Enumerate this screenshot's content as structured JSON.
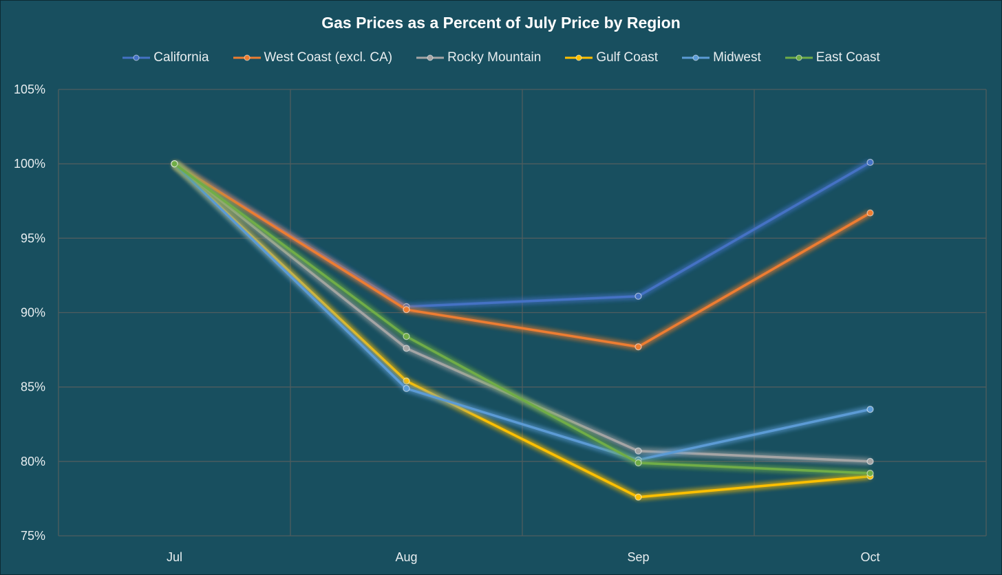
{
  "chart_data": {
    "type": "line",
    "title": "Gas Prices as a Percent of July Price by Region",
    "xlabel": "",
    "ylabel": "",
    "categories": [
      "Jul",
      "Aug",
      "Sep",
      "Oct"
    ],
    "y_tick_labels": [
      "75%",
      "80%",
      "85%",
      "90%",
      "95%",
      "100%",
      "105%"
    ],
    "y_ticks": [
      75,
      80,
      85,
      90,
      95,
      100,
      105
    ],
    "ylim": [
      75,
      105
    ],
    "grid": true,
    "legend_position": "top",
    "series": [
      {
        "name": "California",
        "color": "#4472c4",
        "values": [
          100,
          90.4,
          91.1,
          100.1
        ]
      },
      {
        "name": "West Coast (excl. CA)",
        "color": "#ed7d31",
        "values": [
          100,
          90.2,
          87.7,
          96.7
        ]
      },
      {
        "name": "Rocky Mountain",
        "color": "#a5a5a5",
        "values": [
          100,
          87.6,
          80.7,
          80.0
        ]
      },
      {
        "name": "Gulf Coast",
        "color": "#ffc000",
        "values": [
          100,
          85.4,
          77.6,
          79.0
        ]
      },
      {
        "name": "Midwest",
        "color": "#5b9bd5",
        "values": [
          100,
          84.9,
          80.1,
          83.5
        ]
      },
      {
        "name": "East Coast",
        "color": "#70ad47",
        "values": [
          100,
          88.4,
          79.9,
          79.2
        ]
      }
    ]
  },
  "colors": {
    "background": "#184f5f",
    "gridline": "#4f5d5f",
    "text": "#e8eef0"
  }
}
